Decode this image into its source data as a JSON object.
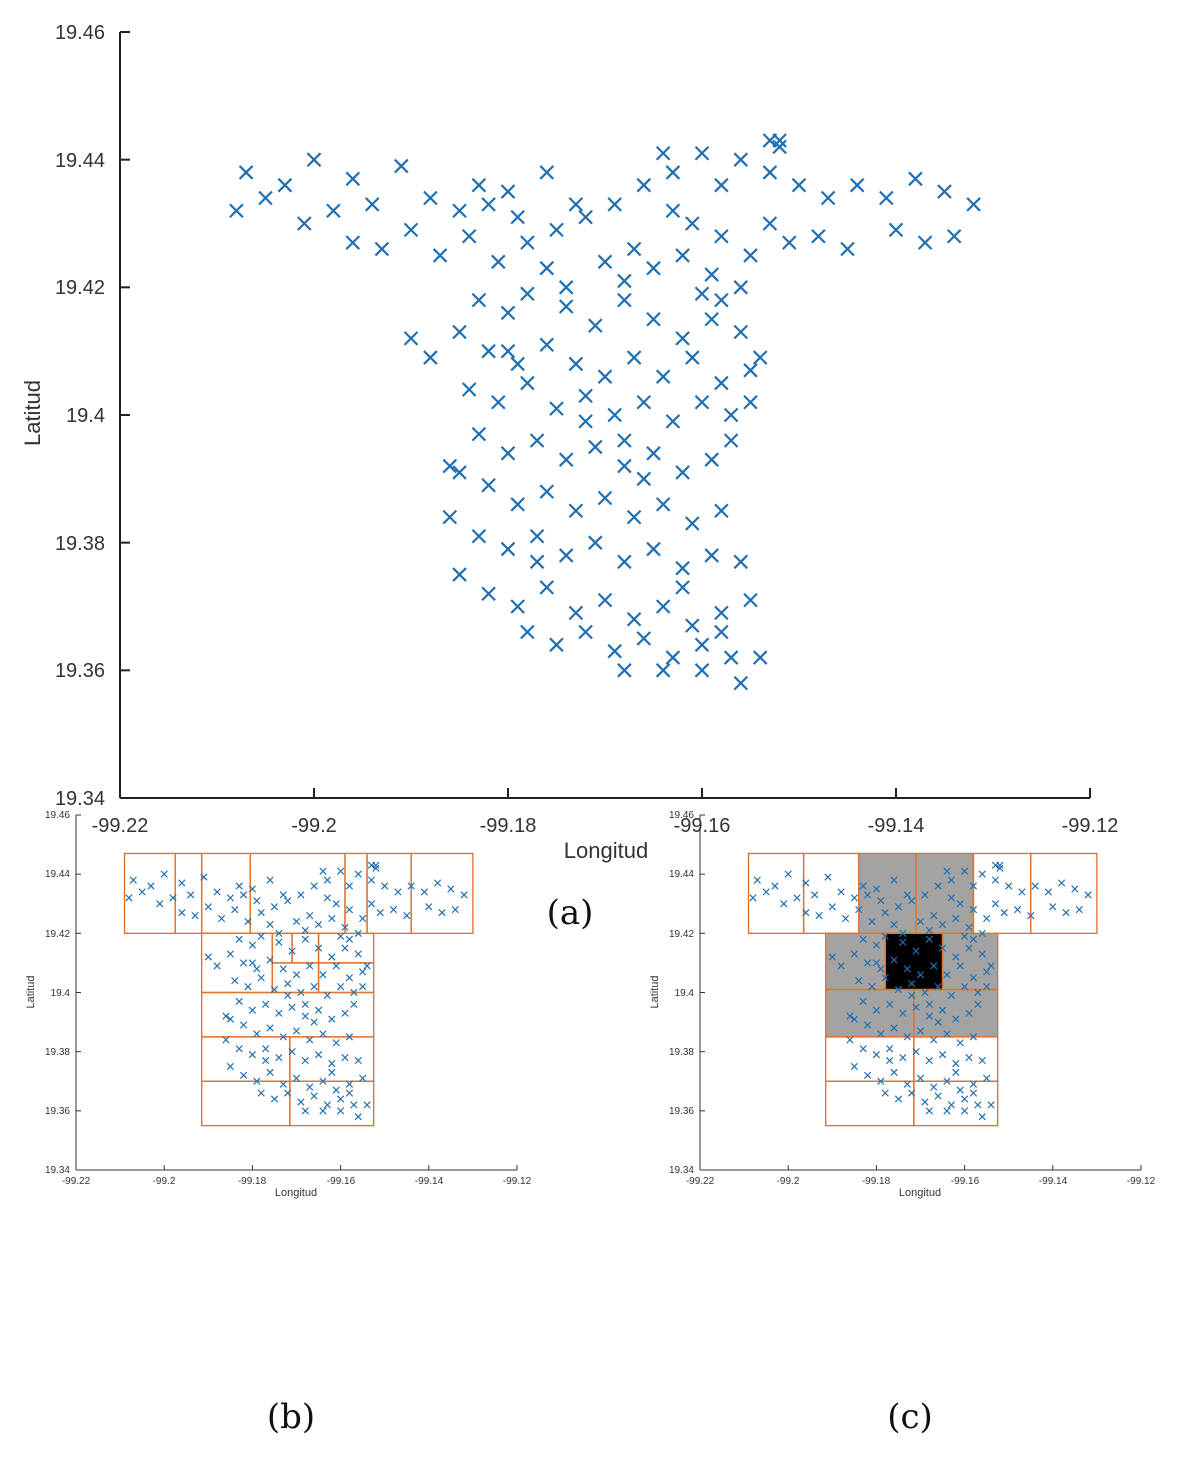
{
  "colors": {
    "marker": "#1f6fb2",
    "grid_cell": "#e2742f",
    "shaded": "#a3a3a3",
    "dense": "#000000"
  },
  "chart_data": [
    {
      "id": "a",
      "type": "scatter",
      "panel_label": "(a)",
      "xlabel": "Longitud",
      "ylabel": "Latitud",
      "xlim": [
        -99.22,
        -99.12
      ],
      "ylim": [
        19.34,
        19.46
      ],
      "xticks": [
        -99.22,
        -99.2,
        -99.18,
        -99.16,
        -99.14,
        -99.12
      ],
      "yticks": [
        19.34,
        19.36,
        19.38,
        19.4,
        19.42,
        19.44,
        19.46
      ],
      "xtick_labels": [
        "-99.22",
        "-99.2",
        "-99.18",
        "-99.16",
        "-99.14",
        "-99.12"
      ],
      "ytick_labels": [
        "19.34",
        "19.36",
        "19.38",
        "19.4",
        "19.42",
        "19.44",
        "19.46"
      ],
      "marker": "x",
      "points": [
        [
          -99.207,
          19.438
        ],
        [
          -99.205,
          19.434
        ],
        [
          -99.208,
          19.432
        ],
        [
          -99.203,
          19.436
        ],
        [
          -99.2,
          19.44
        ],
        [
          -99.198,
          19.432
        ],
        [
          -99.196,
          19.437
        ],
        [
          -99.194,
          19.433
        ],
        [
          -99.191,
          19.439
        ],
        [
          -99.188,
          19.434
        ],
        [
          -99.185,
          19.432
        ],
        [
          -99.183,
          19.436
        ],
        [
          -99.18,
          19.435
        ],
        [
          -99.176,
          19.438
        ],
        [
          -99.173,
          19.433
        ],
        [
          -99.201,
          19.43
        ],
        [
          -99.196,
          19.427
        ],
        [
          -99.193,
          19.426
        ],
        [
          -99.19,
          19.429
        ],
        [
          -99.187,
          19.425
        ],
        [
          -99.184,
          19.428
        ],
        [
          -99.181,
          19.424
        ],
        [
          -99.178,
          19.427
        ],
        [
          -99.175,
          19.429
        ],
        [
          -99.172,
          19.431
        ],
        [
          -99.169,
          19.433
        ],
        [
          -99.166,
          19.436
        ],
        [
          -99.163,
          19.438
        ],
        [
          -99.16,
          19.441
        ],
        [
          -99.164,
          19.441
        ],
        [
          -99.158,
          19.436
        ],
        [
          -99.156,
          19.44
        ],
        [
          -99.153,
          19.438
        ],
        [
          -99.15,
          19.436
        ],
        [
          -99.147,
          19.434
        ],
        [
          -99.144,
          19.436
        ],
        [
          -99.141,
          19.434
        ],
        [
          -99.138,
          19.437
        ],
        [
          -99.135,
          19.435
        ],
        [
          -99.132,
          19.433
        ],
        [
          -99.134,
          19.428
        ],
        [
          -99.137,
          19.427
        ],
        [
          -99.14,
          19.429
        ],
        [
          -99.145,
          19.426
        ],
        [
          -99.148,
          19.428
        ],
        [
          -99.151,
          19.427
        ],
        [
          -99.153,
          19.43
        ],
        [
          -99.152,
          19.443
        ],
        [
          -99.152,
          19.442
        ],
        [
          -99.153,
          19.443
        ],
        [
          -99.17,
          19.424
        ],
        [
          -99.168,
          19.421
        ],
        [
          -99.165,
          19.423
        ],
        [
          -99.162,
          19.425
        ],
        [
          -99.159,
          19.422
        ],
        [
          -99.156,
          19.42
        ],
        [
          -99.176,
          19.423
        ],
        [
          -99.178,
          19.419
        ],
        [
          -99.18,
          19.416
        ],
        [
          -99.174,
          19.417
        ],
        [
          -99.171,
          19.414
        ],
        [
          -99.168,
          19.418
        ],
        [
          -99.165,
          19.415
        ],
        [
          -99.162,
          19.412
        ],
        [
          -99.159,
          19.415
        ],
        [
          -99.156,
          19.413
        ],
        [
          -99.158,
          19.418
        ],
        [
          -99.19,
          19.412
        ],
        [
          -99.188,
          19.409
        ],
        [
          -99.185,
          19.413
        ],
        [
          -99.182,
          19.41
        ],
        [
          -99.179,
          19.408
        ],
        [
          -99.176,
          19.411
        ],
        [
          -99.173,
          19.408
        ],
        [
          -99.17,
          19.406
        ],
        [
          -99.167,
          19.409
        ],
        [
          -99.164,
          19.406
        ],
        [
          -99.161,
          19.409
        ],
        [
          -99.158,
          19.405
        ],
        [
          -99.155,
          19.407
        ],
        [
          -99.184,
          19.404
        ],
        [
          -99.181,
          19.402
        ],
        [
          -99.178,
          19.405
        ],
        [
          -99.175,
          19.401
        ],
        [
          -99.172,
          19.403
        ],
        [
          -99.169,
          19.4
        ],
        [
          -99.166,
          19.402
        ],
        [
          -99.163,
          19.399
        ],
        [
          -99.16,
          19.402
        ],
        [
          -99.157,
          19.4
        ],
        [
          -99.155,
          19.402
        ],
        [
          -99.183,
          19.397
        ],
        [
          -99.18,
          19.394
        ],
        [
          -99.177,
          19.396
        ],
        [
          -99.174,
          19.393
        ],
        [
          -99.171,
          19.395
        ],
        [
          -99.168,
          19.392
        ],
        [
          -99.165,
          19.394
        ],
        [
          -99.162,
          19.391
        ],
        [
          -99.159,
          19.393
        ],
        [
          -99.157,
          19.396
        ],
        [
          -99.185,
          19.391
        ],
        [
          -99.182,
          19.389
        ],
        [
          -99.179,
          19.386
        ],
        [
          -99.176,
          19.388
        ],
        [
          -99.173,
          19.385
        ],
        [
          -99.17,
          19.387
        ],
        [
          -99.167,
          19.384
        ],
        [
          -99.164,
          19.386
        ],
        [
          -99.161,
          19.383
        ],
        [
          -99.158,
          19.385
        ],
        [
          -99.186,
          19.384
        ],
        [
          -99.183,
          19.381
        ],
        [
          -99.18,
          19.379
        ],
        [
          -99.177,
          19.381
        ],
        [
          -99.174,
          19.378
        ],
        [
          -99.171,
          19.38
        ],
        [
          -99.168,
          19.377
        ],
        [
          -99.165,
          19.379
        ],
        [
          -99.162,
          19.376
        ],
        [
          -99.159,
          19.378
        ],
        [
          -99.156,
          19.377
        ],
        [
          -99.185,
          19.375
        ],
        [
          -99.182,
          19.372
        ],
        [
          -99.179,
          19.37
        ],
        [
          -99.176,
          19.373
        ],
        [
          -99.173,
          19.369
        ],
        [
          -99.17,
          19.371
        ],
        [
          -99.167,
          19.368
        ],
        [
          -99.164,
          19.37
        ],
        [
          -99.161,
          19.367
        ],
        [
          -99.158,
          19.369
        ],
        [
          -99.155,
          19.371
        ],
        [
          -99.178,
          19.366
        ],
        [
          -99.175,
          19.364
        ],
        [
          -99.172,
          19.366
        ],
        [
          -99.169,
          19.363
        ],
        [
          -99.166,
          19.365
        ],
        [
          -99.163,
          19.362
        ],
        [
          -99.16,
          19.364
        ],
        [
          -99.157,
          19.362
        ],
        [
          -99.156,
          19.358
        ],
        [
          -99.154,
          19.362
        ],
        [
          -99.168,
          19.36
        ],
        [
          -99.164,
          19.36
        ],
        [
          -99.16,
          19.36
        ],
        [
          -99.158,
          19.366
        ],
        [
          -99.186,
          19.392
        ],
        [
          -99.174,
          19.42
        ],
        [
          -99.167,
          19.426
        ],
        [
          -99.161,
          19.43
        ],
        [
          -99.158,
          19.428
        ],
        [
          -99.155,
          19.425
        ],
        [
          -99.163,
          19.432
        ],
        [
          -99.179,
          19.431
        ],
        [
          -99.182,
          19.433
        ],
        [
          -99.16,
          19.419
        ],
        [
          -99.172,
          19.399
        ],
        [
          -99.166,
          19.39
        ],
        [
          -99.177,
          19.377
        ],
        [
          -99.162,
          19.373
        ],
        [
          -99.168,
          19.396
        ],
        [
          -99.18,
          19.41
        ],
        [
          -99.154,
          19.409
        ],
        [
          -99.183,
          19.418
        ]
      ]
    },
    {
      "id": "b",
      "type": "scatter",
      "panel_label": "(b)",
      "xlabel": "Longitud",
      "ylabel": "Latitud",
      "xlim": [
        -99.22,
        -99.12
      ],
      "ylim": [
        19.34,
        19.46
      ],
      "xtick_labels": [
        "-99.22",
        "-99.2",
        "-99.18",
        "-99.16",
        "-99.14",
        "-99.12"
      ],
      "ytick_labels": [
        "19.34",
        "19.36",
        "19.38",
        "19.4",
        "19.42",
        "19.44",
        "19.46"
      ],
      "marker": "x",
      "grid_cells": [
        [
          -99.209,
          19.42,
          -99.1975,
          19.447
        ],
        [
          -99.1975,
          19.42,
          -99.1915,
          19.447
        ],
        [
          -99.1915,
          19.42,
          -99.1805,
          19.447
        ],
        [
          -99.1805,
          19.42,
          -99.159,
          19.447
        ],
        [
          -99.159,
          19.42,
          -99.154,
          19.447
        ],
        [
          -99.154,
          19.42,
          -99.144,
          19.447
        ],
        [
          -99.144,
          19.42,
          -99.13,
          19.447
        ],
        [
          -99.1915,
          19.4,
          -99.1755,
          19.42
        ],
        [
          -99.1755,
          19.41,
          -99.171,
          19.42
        ],
        [
          -99.171,
          19.41,
          -99.165,
          19.42
        ],
        [
          -99.165,
          19.41,
          -99.1525,
          19.42
        ],
        [
          -99.1755,
          19.4,
          -99.165,
          19.41
        ],
        [
          -99.165,
          19.4,
          -99.1525,
          19.41
        ],
        [
          -99.1915,
          19.385,
          -99.1525,
          19.4
        ],
        [
          -99.1915,
          19.37,
          -99.1715,
          19.385
        ],
        [
          -99.1715,
          19.37,
          -99.1525,
          19.385
        ],
        [
          -99.1915,
          19.355,
          -99.1715,
          19.37
        ],
        [
          -99.1715,
          19.355,
          -99.1525,
          19.37
        ]
      ]
    },
    {
      "id": "c",
      "type": "scatter",
      "panel_label": "(c)",
      "xlabel": "Longitud",
      "ylabel": "Latitud",
      "xlim": [
        -99.22,
        -99.12
      ],
      "ylim": [
        19.34,
        19.46
      ],
      "xtick_labels": [
        "-99.22",
        "-99.2",
        "-99.18",
        "-99.16",
        "-99.14",
        "-99.12"
      ],
      "ytick_labels": [
        "19.34",
        "19.36",
        "19.38",
        "19.4",
        "19.42",
        "19.44",
        "19.46"
      ],
      "marker": "x",
      "shaded_cells": [
        [
          -99.184,
          19.42,
          -99.158,
          19.447
        ],
        [
          -99.1915,
          19.385,
          -99.1525,
          19.42
        ]
      ],
      "dense_cells": [
        [
          -99.178,
          19.401,
          -99.165,
          19.42
        ]
      ],
      "grid_cells": [
        [
          -99.209,
          19.42,
          -99.1965,
          19.447
        ],
        [
          -99.1965,
          19.42,
          -99.184,
          19.447
        ],
        [
          -99.184,
          19.42,
          -99.171,
          19.447
        ],
        [
          -99.171,
          19.42,
          -99.158,
          19.447
        ],
        [
          -99.158,
          19.42,
          -99.145,
          19.447
        ],
        [
          -99.145,
          19.42,
          -99.13,
          19.447
        ],
        [
          -99.1915,
          19.401,
          -99.178,
          19.42
        ],
        [
          -99.178,
          19.401,
          -99.165,
          19.42
        ],
        [
          -99.165,
          19.401,
          -99.1525,
          19.42
        ],
        [
          -99.1915,
          19.385,
          -99.1715,
          19.401
        ],
        [
          -99.1715,
          19.385,
          -99.1525,
          19.401
        ],
        [
          -99.1915,
          19.37,
          -99.1715,
          19.385
        ],
        [
          -99.1715,
          19.37,
          -99.1525,
          19.385
        ],
        [
          -99.1915,
          19.355,
          -99.1715,
          19.37
        ],
        [
          -99.1715,
          19.355,
          -99.1525,
          19.37
        ]
      ]
    }
  ]
}
